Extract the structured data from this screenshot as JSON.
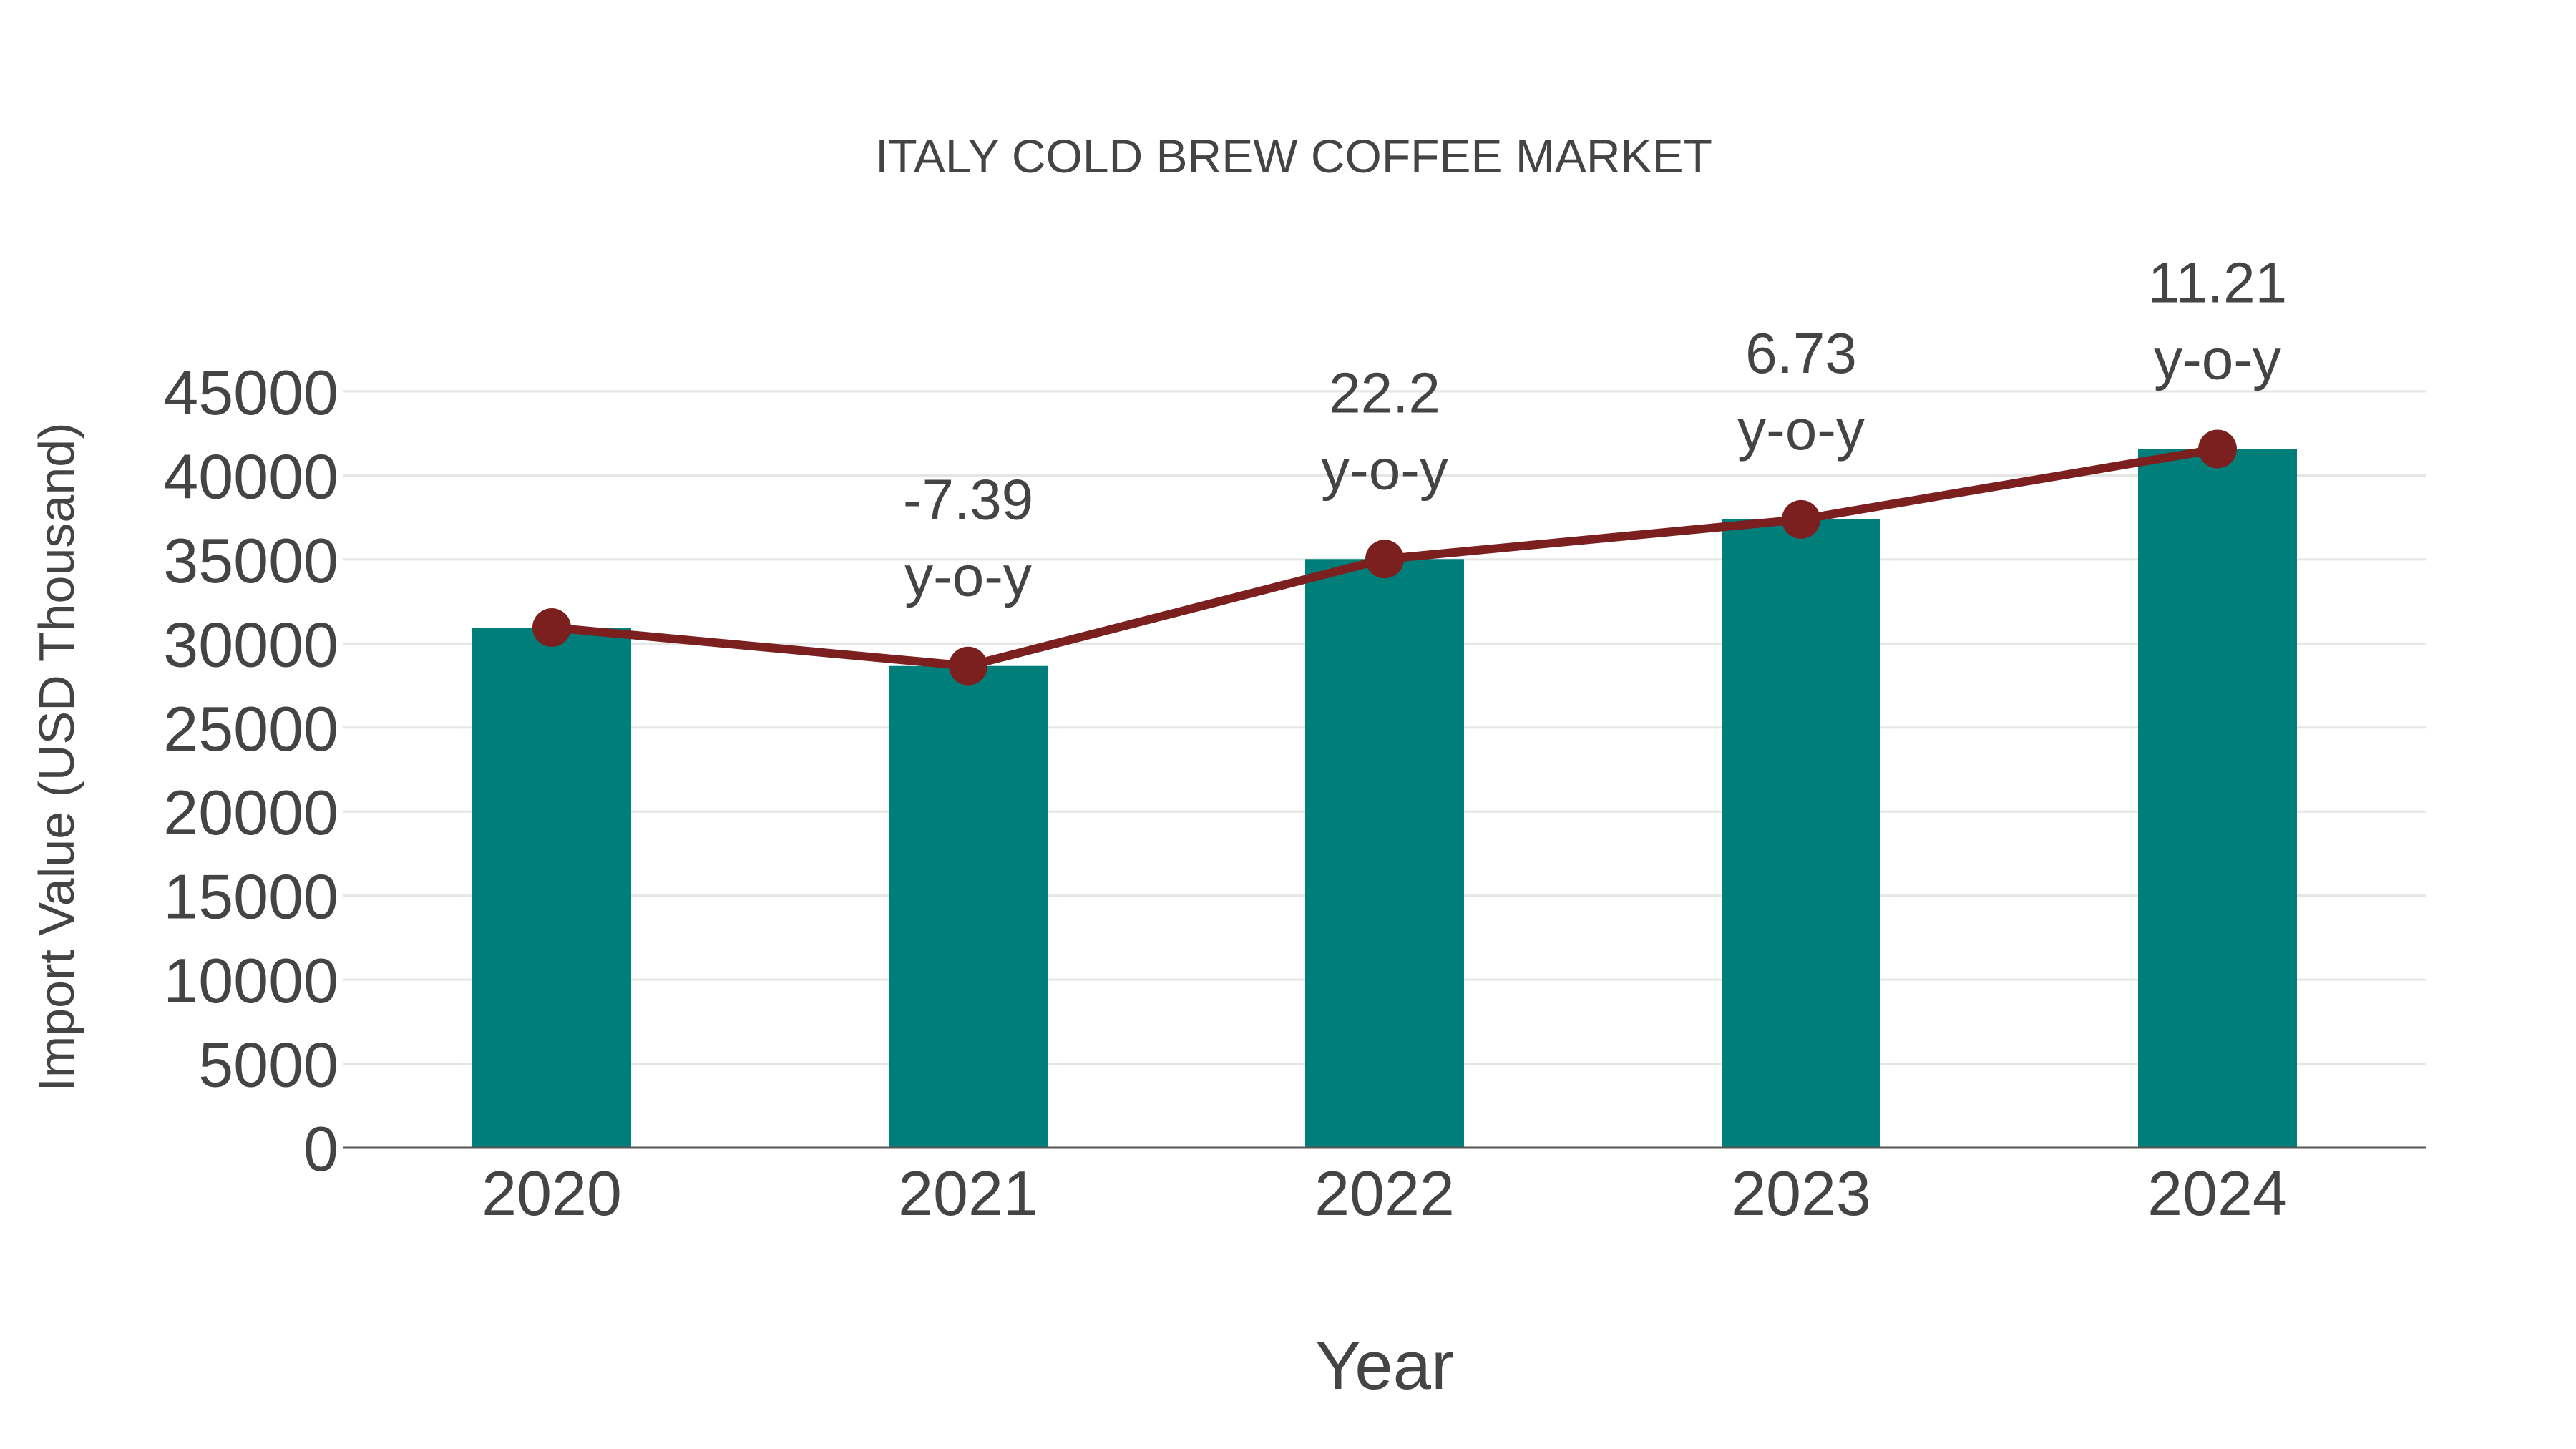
{
  "chart_data": {
    "type": "bar",
    "title": "ITALY COLD BREW COFFEE MARKET",
    "xlabel": "Year",
    "ylabel": "Import Value (USD Thousand)",
    "categories": [
      "2020",
      "2021",
      "2022",
      "2023",
      "2024"
    ],
    "series": [
      {
        "name": "Import Value",
        "type": "bar",
        "color": "#007F7A",
        "values": [
          30950,
          28663,
          35026,
          37383,
          41574
        ]
      },
      {
        "name": "Import Value (line)",
        "type": "line",
        "color": "#7B1F1F",
        "marker": "circle",
        "values": [
          30950,
          28663,
          35026,
          37383,
          41574
        ]
      }
    ],
    "annotations": [
      {
        "category": "2021",
        "value": "-7.39",
        "suffix": "y-o-y"
      },
      {
        "category": "2022",
        "value": "22.2",
        "suffix": "y-o-y"
      },
      {
        "category": "2023",
        "value": "6.73",
        "suffix": "y-o-y"
      },
      {
        "category": "2024",
        "value": "11.21",
        "suffix": "y-o-y"
      }
    ],
    "yticks": [
      0,
      5000,
      10000,
      15000,
      20000,
      25000,
      30000,
      35000,
      40000,
      45000
    ],
    "ylim": [
      0,
      45000
    ],
    "grid": true,
    "legend": "none"
  },
  "colors": {
    "bar": "#007F7A",
    "line": "#7B1F1F",
    "text": "#444444",
    "grid": "#E5E5E5",
    "axis": "#555555"
  }
}
